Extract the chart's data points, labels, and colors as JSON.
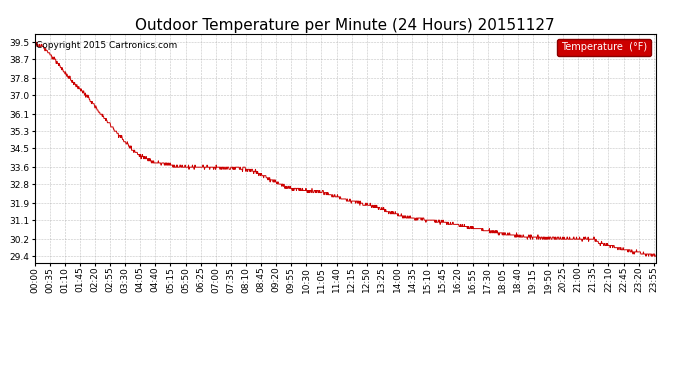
{
  "title": "Outdoor Temperature per Minute (24 Hours) 20151127",
  "copyright_text": "Copyright 2015 Cartronics.com",
  "legend_label": "Temperature  (°F)",
  "line_color": "#cc0000",
  "background_color": "#ffffff",
  "grid_color": "#999999",
  "legend_bg": "#cc0000",
  "legend_text_color": "#ffffff",
  "ylim": [
    29.1,
    39.9
  ],
  "yticks": [
    29.4,
    30.2,
    31.1,
    31.9,
    32.8,
    33.6,
    34.5,
    35.3,
    36.1,
    37.0,
    37.8,
    38.7,
    39.5
  ],
  "total_minutes": 1440,
  "xtick_interval": 35,
  "title_fontsize": 11,
  "axis_fontsize": 6.5,
  "copyright_fontsize": 6.5,
  "keypoints_x": [
    0,
    30,
    60,
    90,
    120,
    150,
    180,
    210,
    240,
    270,
    300,
    330,
    360,
    390,
    420,
    450,
    480,
    510,
    540,
    560,
    580,
    610,
    630,
    660,
    700,
    730,
    760,
    790,
    820,
    850,
    870,
    900,
    950,
    1000,
    1050,
    1100,
    1150,
    1200,
    1250,
    1300,
    1310,
    1340,
    1370,
    1400,
    1430,
    1439
  ],
  "keypoints_y": [
    39.5,
    39.1,
    38.3,
    37.6,
    37.0,
    36.2,
    35.5,
    34.8,
    34.2,
    33.9,
    33.75,
    33.65,
    33.6,
    33.62,
    33.6,
    33.55,
    33.55,
    33.4,
    33.1,
    32.9,
    32.65,
    32.55,
    32.5,
    32.45,
    32.2,
    32.0,
    31.9,
    31.75,
    31.5,
    31.3,
    31.2,
    31.15,
    31.0,
    30.8,
    30.6,
    30.4,
    30.3,
    30.25,
    30.22,
    30.2,
    30.0,
    29.85,
    29.7,
    29.55,
    29.45,
    29.4
  ]
}
